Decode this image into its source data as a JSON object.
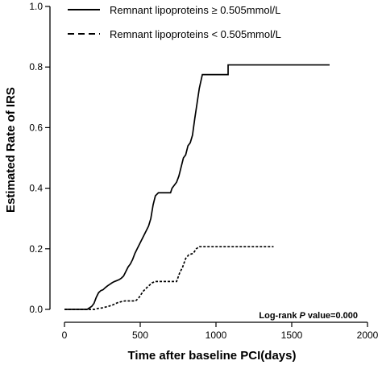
{
  "chart_data": {
    "type": "line",
    "title": "",
    "xlabel": "Time after baseline PCI(days)",
    "ylabel": "Estimated Rate of IRS",
    "xlim": [
      0,
      2000
    ],
    "ylim": [
      0,
      1.0
    ],
    "x_ticks": [
      0,
      500,
      1000,
      1500,
      2000
    ],
    "x_tick_labels": [
      "0",
      "500",
      "1000",
      "1500",
      "2000"
    ],
    "y_ticks": [
      0.0,
      0.2,
      0.4,
      0.6,
      0.8,
      1.0
    ],
    "y_tick_labels": [
      "0.0",
      "0.2",
      "0.4",
      "0.6",
      "0.8",
      "1.0"
    ],
    "grid": false,
    "legend_position": "top-left",
    "annotation": {
      "prefix": "Log-rank ",
      "italic": "P",
      "suffix": " value=0.000"
    },
    "series": [
      {
        "name": "Remnant lipoproteins ≥ 0.505mmol/L",
        "style": "solid",
        "color": "#000000",
        "points": [
          [
            0,
            0.0
          ],
          [
            150,
            0.0
          ],
          [
            165,
            0.005
          ],
          [
            180,
            0.01
          ],
          [
            195,
            0.02
          ],
          [
            210,
            0.04
          ],
          [
            225,
            0.055
          ],
          [
            240,
            0.062
          ],
          [
            255,
            0.065
          ],
          [
            270,
            0.072
          ],
          [
            285,
            0.078
          ],
          [
            300,
            0.083
          ],
          [
            315,
            0.088
          ],
          [
            330,
            0.092
          ],
          [
            345,
            0.095
          ],
          [
            360,
            0.098
          ],
          [
            375,
            0.103
          ],
          [
            390,
            0.11
          ],
          [
            405,
            0.125
          ],
          [
            420,
            0.14
          ],
          [
            435,
            0.15
          ],
          [
            450,
            0.165
          ],
          [
            465,
            0.185
          ],
          [
            480,
            0.2
          ],
          [
            495,
            0.215
          ],
          [
            510,
            0.23
          ],
          [
            525,
            0.245
          ],
          [
            540,
            0.26
          ],
          [
            555,
            0.275
          ],
          [
            570,
            0.3
          ],
          [
            585,
            0.345
          ],
          [
            600,
            0.375
          ],
          [
            620,
            0.385
          ],
          [
            700,
            0.385
          ],
          [
            710,
            0.4
          ],
          [
            725,
            0.41
          ],
          [
            740,
            0.42
          ],
          [
            755,
            0.44
          ],
          [
            770,
            0.47
          ],
          [
            785,
            0.5
          ],
          [
            800,
            0.51
          ],
          [
            815,
            0.54
          ],
          [
            830,
            0.55
          ],
          [
            845,
            0.575
          ],
          [
            860,
            0.63
          ],
          [
            875,
            0.68
          ],
          [
            890,
            0.73
          ],
          [
            910,
            0.775
          ],
          [
            1080,
            0.775
          ],
          [
            1080,
            0.807
          ],
          [
            1750,
            0.807
          ]
        ]
      },
      {
        "name": "Remnant lipoproteins < 0.505mmol/L",
        "style": "dashed",
        "color": "#000000",
        "points": [
          [
            0,
            0.0
          ],
          [
            200,
            0.0
          ],
          [
            220,
            0.003
          ],
          [
            250,
            0.005
          ],
          [
            290,
            0.01
          ],
          [
            320,
            0.015
          ],
          [
            350,
            0.022
          ],
          [
            380,
            0.026
          ],
          [
            400,
            0.028
          ],
          [
            470,
            0.028
          ],
          [
            490,
            0.038
          ],
          [
            520,
            0.06
          ],
          [
            550,
            0.075
          ],
          [
            580,
            0.088
          ],
          [
            600,
            0.092
          ],
          [
            740,
            0.092
          ],
          [
            760,
            0.12
          ],
          [
            780,
            0.14
          ],
          [
            800,
            0.168
          ],
          [
            820,
            0.18
          ],
          [
            850,
            0.185
          ],
          [
            870,
            0.2
          ],
          [
            890,
            0.207
          ],
          [
            1380,
            0.207
          ]
        ]
      }
    ]
  }
}
